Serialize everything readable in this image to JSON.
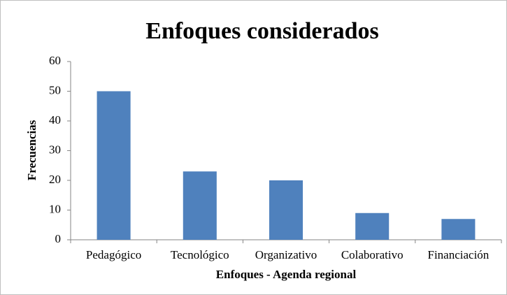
{
  "chart_data": {
    "type": "bar",
    "title": "Enfoques considerados",
    "x_label": "Enfoques - Agenda regional",
    "y_label": "Frecuencias",
    "categories": [
      "Pedagógico",
      "Tecnológico",
      "Organizativo",
      "Colaborativo",
      "Financiación"
    ],
    "values": [
      50,
      23,
      20,
      9,
      7
    ],
    "color": "#4f81bd",
    "ylim": [
      0,
      60
    ],
    "yticks": [
      0,
      10,
      20,
      30,
      40,
      50,
      60
    ],
    "grid": false
  }
}
